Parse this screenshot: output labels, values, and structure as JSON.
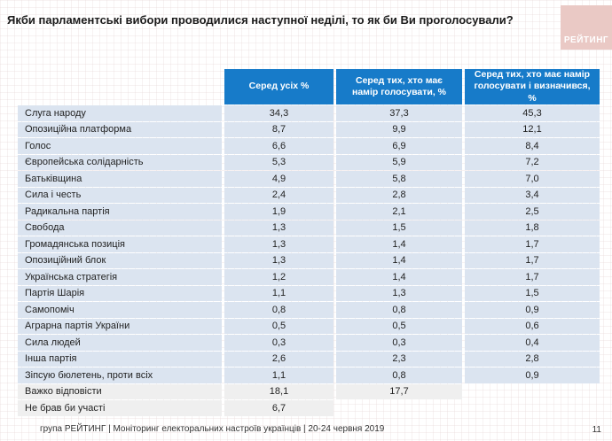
{
  "slide": {
    "title": "Якби парламентські вибори проводилися наступної неділі, то як би Ви проголосували?",
    "logo_text": "РЕЙТИНГ",
    "footer": "група РЕЙТИНГ | Моніторинг електоральних настроїв українців | 20-24 червня 2019",
    "page_number": "11"
  },
  "colors": {
    "header_blue": "#177bc9",
    "row_blue": "#dbe4f0",
    "row_gray": "#efefef",
    "logo_pink": "#eac9c5"
  },
  "table": {
    "columns": [
      "Серед усіх %",
      "Серед тих, хто має намір голосувати, %",
      "Серед тих, хто має намір голосувати і визначився, %"
    ],
    "rows": [
      {
        "label": "Слуга народу",
        "all": "34,3",
        "intend": "37,3",
        "decided": "45,3",
        "variant": "blue"
      },
      {
        "label": "Опозиційна платформа",
        "all": "8,7",
        "intend": "9,9",
        "decided": "12,1",
        "variant": "blue"
      },
      {
        "label": "Голос",
        "all": "6,6",
        "intend": "6,9",
        "decided": "8,4",
        "variant": "blue"
      },
      {
        "label": "Європейська солідарність",
        "all": "5,3",
        "intend": "5,9",
        "decided": "7,2",
        "variant": "blue"
      },
      {
        "label": "Батьківщина",
        "all": "4,9",
        "intend": "5,8",
        "decided": "7,0",
        "variant": "blue"
      },
      {
        "label": "Сила і честь",
        "all": "2,4",
        "intend": "2,8",
        "decided": "3,4",
        "variant": "blue"
      },
      {
        "label": "Радикальна партія",
        "all": "1,9",
        "intend": "2,1",
        "decided": "2,5",
        "variant": "blue"
      },
      {
        "label": "Свобода",
        "all": "1,3",
        "intend": "1,5",
        "decided": "1,8",
        "variant": "blue"
      },
      {
        "label": "Громадянська позиція",
        "all": "1,3",
        "intend": "1,4",
        "decided": "1,7",
        "variant": "blue"
      },
      {
        "label": "Опозиційний блок",
        "all": "1,3",
        "intend": "1,4",
        "decided": "1,7",
        "variant": "blue"
      },
      {
        "label": "Українська стратегія",
        "all": "1,2",
        "intend": "1,4",
        "decided": "1,7",
        "variant": "blue"
      },
      {
        "label": "Партія Шарія",
        "all": "1,1",
        "intend": "1,3",
        "decided": "1,5",
        "variant": "blue"
      },
      {
        "label": "Самопоміч",
        "all": "0,8",
        "intend": "0,8",
        "decided": "0,9",
        "variant": "blue"
      },
      {
        "label": "Аграрна партія України",
        "all": "0,5",
        "intend": "0,5",
        "decided": "0,6",
        "variant": "blue"
      },
      {
        "label": "Сила людей",
        "all": "0,3",
        "intend": "0,3",
        "decided": "0,4",
        "variant": "blue"
      },
      {
        "label": "Інша партія",
        "all": "2,6",
        "intend": "2,3",
        "decided": "2,8",
        "variant": "blue"
      },
      {
        "label": "Зіпсую бюлетень, проти всіх",
        "all": "1,1",
        "intend": "0,8",
        "decided": "0,9",
        "variant": "blue"
      },
      {
        "label": "Важко відповісти",
        "all": "18,1",
        "intend": "17,7",
        "decided": "",
        "variant": "gray"
      },
      {
        "label": "Не брав би участі",
        "all": "6,7",
        "intend": "",
        "decided": "",
        "variant": "gray"
      }
    ]
  },
  "chart_data": {
    "type": "table",
    "title": "Якби парламентські вибори проводилися наступної неділі, то як би Ви проголосували?",
    "categories": [
      "Слуга народу",
      "Опозиційна платформа",
      "Голос",
      "Європейська солідарність",
      "Батьківщина",
      "Сила і честь",
      "Радикальна партія",
      "Свобода",
      "Громадянська позиція",
      "Опозиційний блок",
      "Українська стратегія",
      "Партія Шарія",
      "Самопоміч",
      "Аграрна партія України",
      "Сила людей",
      "Інша партія",
      "Зіпсую бюлетень, проти всіх",
      "Важко відповісти",
      "Не брав би участі"
    ],
    "series": [
      {
        "name": "Серед усіх %",
        "values": [
          34.3,
          8.7,
          6.6,
          5.3,
          4.9,
          2.4,
          1.9,
          1.3,
          1.3,
          1.3,
          1.2,
          1.1,
          0.8,
          0.5,
          0.3,
          2.6,
          1.1,
          18.1,
          6.7
        ]
      },
      {
        "name": "Серед тих, хто має намір голосувати, %",
        "values": [
          37.3,
          9.9,
          6.9,
          5.9,
          5.8,
          2.8,
          2.1,
          1.5,
          1.4,
          1.4,
          1.4,
          1.3,
          0.8,
          0.5,
          0.3,
          2.3,
          0.8,
          17.7,
          null
        ]
      },
      {
        "name": "Серед тих, хто має намір голосувати і визначився, %",
        "values": [
          45.3,
          12.1,
          8.4,
          7.2,
          7.0,
          3.4,
          2.5,
          1.8,
          1.7,
          1.7,
          1.7,
          1.5,
          0.9,
          0.6,
          0.4,
          2.8,
          0.9,
          null,
          null
        ]
      }
    ],
    "source": "група РЕЙТИНГ | Моніторинг електоральних настроїв українців | 20-24 червня 2019"
  }
}
